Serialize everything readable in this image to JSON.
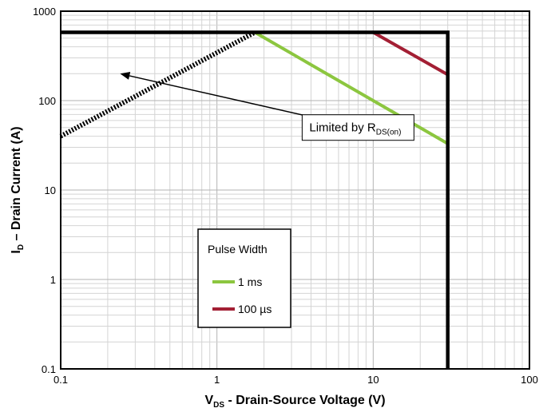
{
  "chart_data": {
    "type": "line",
    "x_scale": "log",
    "y_scale": "log",
    "xlim": [
      0.1,
      100
    ],
    "ylim": [
      0.1,
      1000
    ],
    "x_ticks": [
      "0.1",
      "1",
      "10",
      "100"
    ],
    "y_ticks": [
      "0.1",
      "1",
      "10",
      "100",
      "1000"
    ],
    "x_tick_values": [
      0.1,
      1,
      10,
      100
    ],
    "y_tick_values": [
      0.1,
      1,
      10,
      100,
      1000
    ],
    "xlabel": {
      "main": "V",
      "sub": "DS",
      "rest": " - Drain-Source Voltage (V)"
    },
    "ylabel": {
      "main": "I",
      "sub": "D",
      "rest": " – Drain Current (A)"
    },
    "grid": "minor+major",
    "legend": {
      "title": "Pulse Width",
      "position": "lower-center",
      "items": [
        {
          "label": "1 ms",
          "color": "#8cc63f"
        },
        {
          "label": "100 µs",
          "color": "#a31f34"
        }
      ]
    },
    "series": [
      {
        "name": "1 ms",
        "color": "#8cc63f",
        "style": "solid",
        "points": [
          [
            1.75,
            580
          ],
          [
            30,
            33
          ]
        ]
      },
      {
        "name": "100 µs",
        "color": "#a31f34",
        "style": "solid",
        "points": [
          [
            10,
            580
          ],
          [
            30,
            195
          ]
        ]
      },
      {
        "style": "dotted",
        "color": "#000000",
        "points": [
          [
            0.1,
            40
          ],
          [
            1.75,
            580
          ]
        ]
      },
      {
        "style": "solid",
        "color": "#000000",
        "points": [
          [
            0.1,
            580
          ],
          [
            30,
            580
          ],
          [
            30,
            0.1
          ]
        ]
      }
    ],
    "annotations": [
      {
        "text_main": "Limited by R",
        "text_sub": "DS(on)",
        "arrow_to": [
          0.24,
          200
        ],
        "text_at": [
          8,
          50
        ]
      }
    ]
  }
}
